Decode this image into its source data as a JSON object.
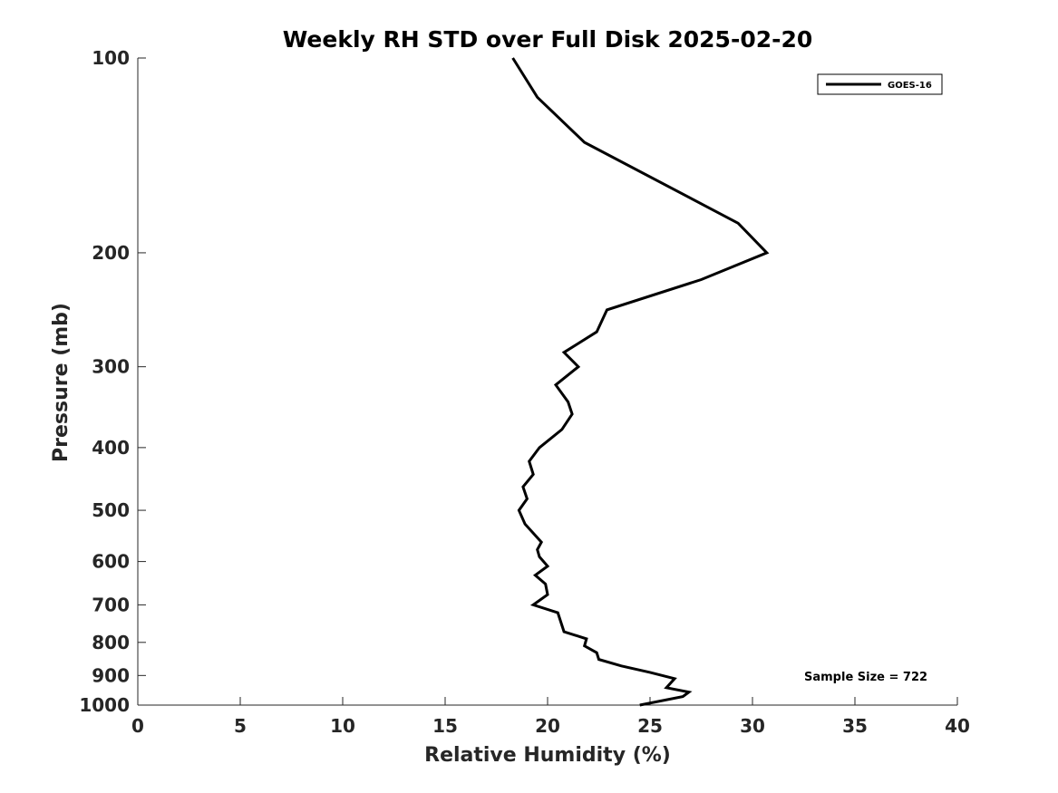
{
  "chart_data": {
    "type": "line",
    "title": "Weekly RH STD over Full Disk 2025-02-20",
    "xlabel": "Relative Humidity (%)",
    "ylabel": "Pressure (mb)",
    "xlim": [
      0,
      40
    ],
    "ylim": [
      100,
      1000
    ],
    "y_scale": "log",
    "y_reversed": true,
    "grid": false,
    "legend_position": "top-right",
    "xticks": [
      0,
      5,
      10,
      15,
      20,
      25,
      30,
      35,
      40
    ],
    "yticks": [
      100,
      200,
      300,
      400,
      500,
      600,
      700,
      800,
      900,
      1000
    ],
    "series": [
      {
        "name": "GOES-16",
        "color": "#000000",
        "points": [
          [
            18.3,
            100
          ],
          [
            19.5,
            115
          ],
          [
            21.8,
            135
          ],
          [
            29.3,
            180
          ],
          [
            30.7,
            200
          ],
          [
            27.5,
            220
          ],
          [
            22.9,
            245
          ],
          [
            22.4,
            265
          ],
          [
            20.8,
            285
          ],
          [
            21.5,
            300
          ],
          [
            20.4,
            320
          ],
          [
            21.0,
            340
          ],
          [
            21.2,
            355
          ],
          [
            20.7,
            375
          ],
          [
            19.6,
            400
          ],
          [
            19.1,
            420
          ],
          [
            19.3,
            440
          ],
          [
            18.8,
            460
          ],
          [
            19.0,
            480
          ],
          [
            18.6,
            500
          ],
          [
            18.9,
            525
          ],
          [
            19.7,
            560
          ],
          [
            19.5,
            575
          ],
          [
            19.6,
            590
          ],
          [
            20.0,
            610
          ],
          [
            19.4,
            630
          ],
          [
            19.9,
            650
          ],
          [
            20.0,
            675
          ],
          [
            19.3,
            700
          ],
          [
            20.5,
            720
          ],
          [
            20.8,
            770
          ],
          [
            21.9,
            790
          ],
          [
            21.8,
            810
          ],
          [
            22.4,
            830
          ],
          [
            22.5,
            850
          ],
          [
            23.6,
            870
          ],
          [
            25.0,
            890
          ],
          [
            26.2,
            910
          ],
          [
            25.8,
            940
          ],
          [
            26.9,
            955
          ],
          [
            26.6,
            970
          ],
          [
            24.5,
            1000
          ]
        ]
      }
    ],
    "annotation": "Sample Size = 722"
  }
}
